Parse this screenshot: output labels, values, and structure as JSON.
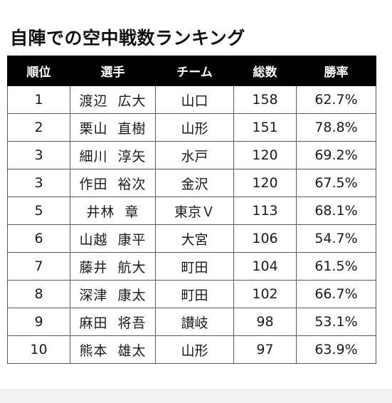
{
  "title": "自陣での空中戦数ランキング",
  "table": {
    "headers": [
      "順位",
      "選手",
      "チーム",
      "総数",
      "勝率"
    ],
    "rows": [
      {
        "rank": "1",
        "surname": "渡辺",
        "given": "広大",
        "team": "山口",
        "total": "158",
        "win_rate": "62.7%"
      },
      {
        "rank": "2",
        "surname": "栗山",
        "given": "直樹",
        "team": "山形",
        "total": "151",
        "win_rate": "78.8%"
      },
      {
        "rank": "3",
        "surname": "細川",
        "given": "淳矢",
        "team": "水戸",
        "total": "120",
        "win_rate": "69.2%"
      },
      {
        "rank": "3",
        "surname": "作田",
        "given": "裕次",
        "team": "金沢",
        "total": "120",
        "win_rate": "67.5%"
      },
      {
        "rank": "5",
        "surname": "井林",
        "given": "章",
        "team": "東京Ｖ",
        "total": "113",
        "win_rate": "68.1%"
      },
      {
        "rank": "6",
        "surname": "山越",
        "given": "康平",
        "team": "大宮",
        "total": "106",
        "win_rate": "54.7%"
      },
      {
        "rank": "7",
        "surname": "藤井",
        "given": "航大",
        "team": "町田",
        "total": "104",
        "win_rate": "61.5%"
      },
      {
        "rank": "8",
        "surname": "深津",
        "given": "康太",
        "team": "町田",
        "total": "102",
        "win_rate": "66.7%"
      },
      {
        "rank": "9",
        "surname": "麻田",
        "given": "将吾",
        "team": "讃岐",
        "total": "98",
        "win_rate": "53.1%"
      },
      {
        "rank": "10",
        "surname": "熊本",
        "given": "雄太",
        "team": "山形",
        "total": "97",
        "win_rate": "63.9%"
      }
    ]
  },
  "colors": {
    "header_bg": "#000000",
    "header_text": "#ffffff",
    "border": "#5a5a5a",
    "text": "#1a1a1a"
  }
}
